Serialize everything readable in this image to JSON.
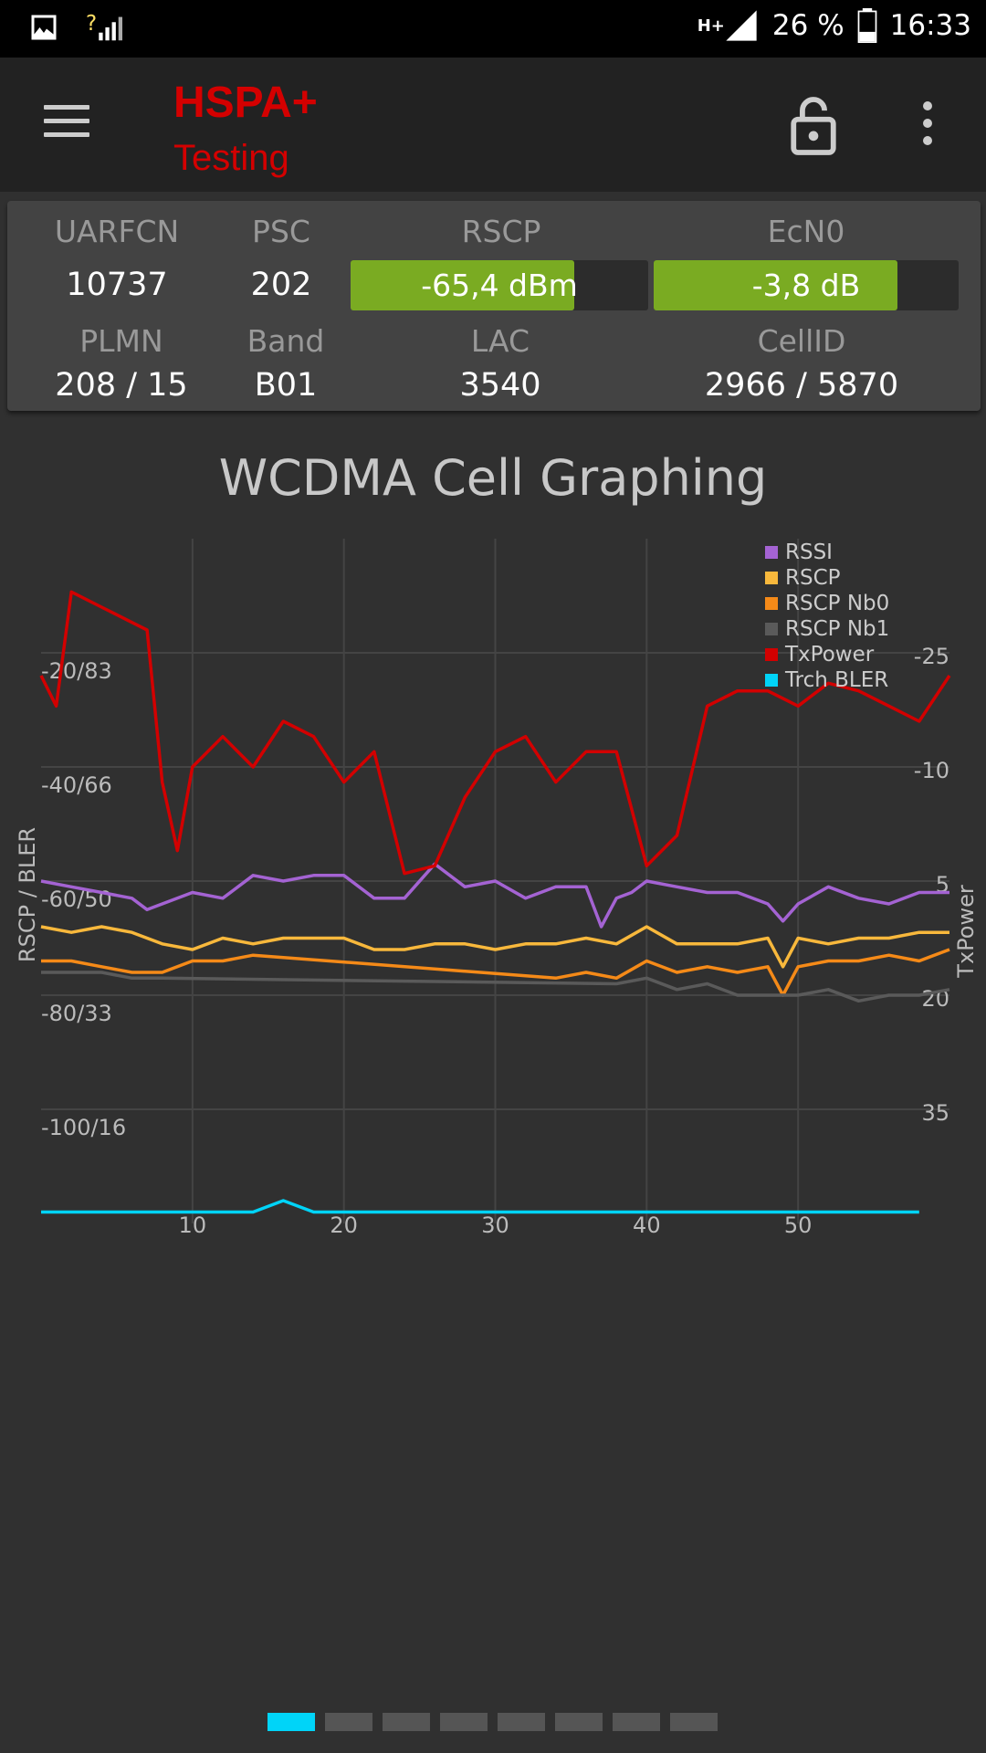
{
  "status_bar": {
    "battery": "26 %",
    "time": "16:33",
    "network": "H+",
    "signal_icon": "signal-icon",
    "image_icon": "image-icon"
  },
  "toolbar": {
    "title": "HSPA+",
    "subtitle": "Testing"
  },
  "cell": {
    "labels": {
      "uarfcn": "UARFCN",
      "psc": "PSC",
      "rscp": "RSCP",
      "ecn0": "EcN0",
      "plmn": "PLMN",
      "band": "Band",
      "lac": "LAC",
      "cellid": "CellID"
    },
    "values": {
      "uarfcn": "10737",
      "psc": "202",
      "rscp": "-65,4 dBm",
      "ecn0": "-3,8 dB",
      "plmn": "208 / 15",
      "band": "B01",
      "lac": "3540",
      "cellid": "2966 / 5870"
    },
    "rscp_level": 0.75,
    "ecn0_level": 0.8
  },
  "chart_data": {
    "type": "line",
    "title": "WCDMA Cell Graphing",
    "ylabel": "RSCP / BLER",
    "y2label": "TxPower",
    "left_ticks": [
      "-20/83",
      "-40/66",
      "-60/50",
      "-80/33",
      "-100/16"
    ],
    "left_tick_values": [
      -20,
      -40,
      -60,
      -80,
      -100
    ],
    "right_ticks": [
      "-25",
      "-10",
      "5",
      "20",
      "35"
    ],
    "right_tick_values": [
      -25,
      -10,
      5,
      20,
      35
    ],
    "x_ticks": [
      10,
      20,
      30,
      40,
      50
    ],
    "xlim": [
      0,
      60
    ],
    "ylim": [
      -120,
      0
    ],
    "y2lim": [
      -40,
      50
    ],
    "legend": "top-right",
    "grid": true,
    "series": [
      {
        "name": "RSSI",
        "color": "#a463d3",
        "axis": "left",
        "x": [
          0,
          2,
          4,
          6,
          7,
          8,
          10,
          12,
          14,
          16,
          18,
          20,
          22,
          24,
          26,
          28,
          30,
          32,
          34,
          36,
          37,
          38,
          39,
          40,
          42,
          44,
          46,
          48,
          49,
          50,
          52,
          54,
          56,
          58,
          60
        ],
        "y": [
          -60,
          -61,
          -62,
          -63,
          -65,
          -64,
          -62,
          -63,
          -59,
          -60,
          -59,
          -59,
          -63,
          -63,
          -57,
          -61,
          -60,
          -63,
          -61,
          -61,
          -68,
          -63,
          -62,
          -60,
          -61,
          -62,
          -62,
          -64,
          -67,
          -64,
          -61,
          -63,
          -64,
          -62,
          -62
        ]
      },
      {
        "name": "RSCP",
        "color": "#f8b83c",
        "axis": "left",
        "x": [
          0,
          2,
          4,
          6,
          8,
          10,
          12,
          14,
          16,
          18,
          20,
          22,
          24,
          26,
          28,
          30,
          32,
          34,
          36,
          38,
          40,
          42,
          44,
          46,
          48,
          49,
          50,
          52,
          54,
          56,
          58,
          60
        ],
        "y": [
          -68,
          -69,
          -68,
          -69,
          -71,
          -72,
          -70,
          -71,
          -70,
          -70,
          -70,
          -72,
          -72,
          -71,
          -71,
          -72,
          -71,
          -71,
          -70,
          -71,
          -68,
          -71,
          -71,
          -71,
          -70,
          -75,
          -70,
          -71,
          -70,
          -70,
          -69,
          -69
        ]
      },
      {
        "name": "RSCP Nb0",
        "color": "#f58a18",
        "axis": "left",
        "x": [
          0,
          2,
          4,
          6,
          8,
          10,
          12,
          14,
          34,
          36,
          38,
          40,
          42,
          44,
          46,
          48,
          49,
          50,
          52,
          54,
          56,
          58,
          60
        ],
        "y": [
          -74,
          -74,
          -75,
          -76,
          -76,
          -74,
          -74,
          -73,
          -77,
          -76,
          -77,
          -74,
          -76,
          -75,
          -76,
          -75,
          -80,
          -75,
          -74,
          -74,
          -73,
          -74,
          -72
        ]
      },
      {
        "name": "RSCP Nb1",
        "color": "#5a5a5a",
        "axis": "left",
        "x": [
          0,
          2,
          4,
          6,
          8,
          38,
          40,
          42,
          44,
          46,
          48,
          50,
          52,
          54,
          56,
          58,
          60
        ],
        "y": [
          -76,
          -76,
          -76,
          -77,
          -77,
          -78,
          -77,
          -79,
          -78,
          -80,
          -80,
          -80,
          -79,
          -81,
          -80,
          -80,
          -79
        ]
      },
      {
        "name": "TxPower",
        "color": "#d20000",
        "axis": "right",
        "x": [
          0,
          1,
          2,
          4,
          5,
          6,
          7,
          8,
          9,
          10,
          12,
          14,
          16,
          18,
          20,
          22,
          24,
          26,
          28,
          30,
          32,
          34,
          36,
          38,
          40,
          42,
          44,
          46,
          48,
          50,
          52,
          54,
          56,
          58,
          60
        ],
        "y": [
          -22,
          -18,
          -33,
          -31,
          -30,
          -29,
          -28,
          -8,
          1,
          -10,
          -14,
          -10,
          -16,
          -14,
          -8,
          -12,
          4,
          3,
          -6,
          -12,
          -14,
          -8,
          -12,
          -12,
          3,
          -1,
          -18,
          -20,
          -20,
          -18,
          -21,
          -20,
          -18,
          -16,
          -22
        ]
      },
      {
        "name": "Trch BLER",
        "color": "#00d4f8",
        "axis": "left",
        "x": [
          0,
          10,
          14,
          16,
          18,
          20,
          24,
          30,
          34,
          38,
          40,
          44,
          50,
          52,
          56,
          58
        ],
        "y": [
          -118,
          -118,
          -118,
          -116,
          -118,
          -118,
          -118,
          -118,
          -118,
          -118,
          -118,
          -118,
          -118,
          -118,
          -118,
          -118
        ]
      }
    ]
  },
  "pager": {
    "count": 8,
    "active": 0
  }
}
